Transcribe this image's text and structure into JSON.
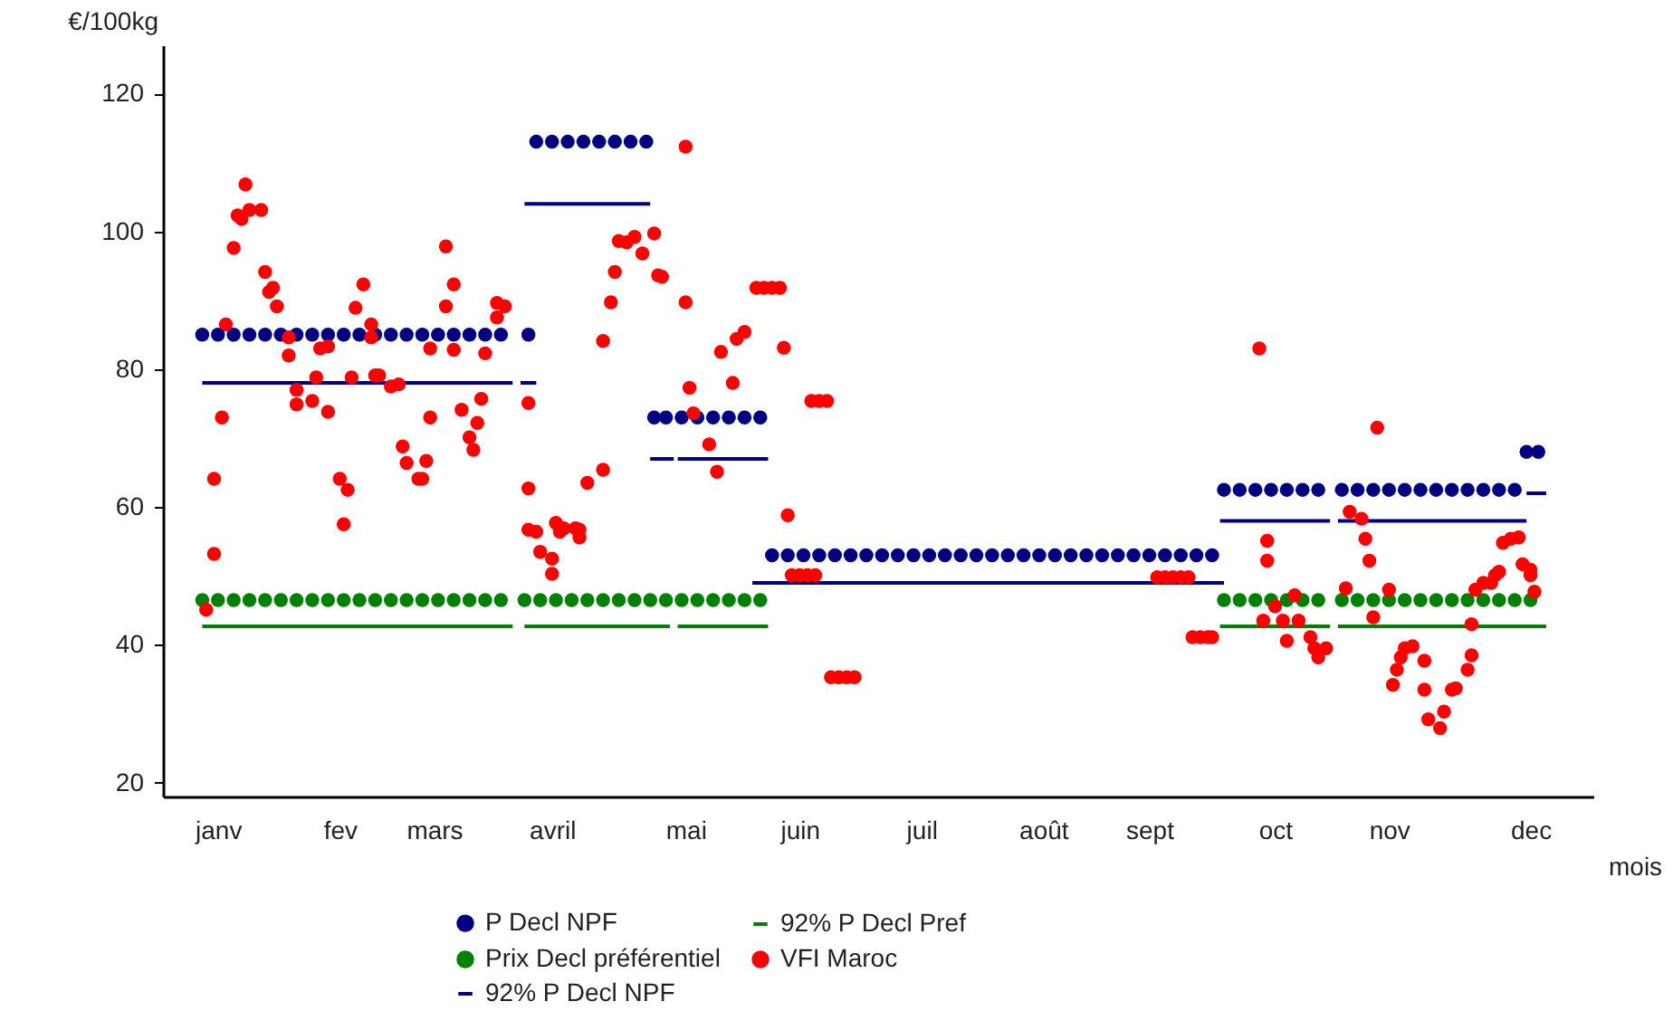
{
  "chart_data": {
    "type": "scatter",
    "xlabel": "mois",
    "ylabel": "€/100kg",
    "xlim": [
      "--01-01",
      "--12-31"
    ],
    "ylim": [
      18,
      127
    ],
    "yticks": [
      20,
      40,
      60,
      80,
      100,
      120
    ],
    "xticks": [
      {
        "value": "--01-15",
        "label": "janv"
      },
      {
        "value": "--02-15",
        "label": "fev"
      },
      {
        "value": "--03-11",
        "label": "mars"
      },
      {
        "value": "--04-10",
        "label": "avril"
      },
      {
        "value": "--05-14",
        "label": "mai"
      },
      {
        "value": "--06-12",
        "label": "juin"
      },
      {
        "value": "--07-13",
        "label": "juil"
      },
      {
        "value": "--08-13",
        "label": "août"
      },
      {
        "value": "--09-09",
        "label": "sept"
      },
      {
        "value": "--10-11",
        "label": "oct"
      },
      {
        "value": "--11-09",
        "label": "nov"
      },
      {
        "value": "--12-15",
        "label": "dec"
      }
    ],
    "grid": false,
    "legend": "bottom",
    "marker": "circle",
    "line_style": "solid",
    "series": [
      {
        "name": "P Decl NPF",
        "color": "#000080",
        "x": [
          "--01-11",
          "--01-15",
          "--01-19",
          "--01-23",
          "--01-27",
          "--01-31",
          "--02-04",
          "--02-08",
          "--02-12",
          "--02-16",
          "--02-20",
          "--02-24",
          "--02-28",
          "--03-04",
          "--03-08",
          "--03-12",
          "--03-16",
          "--03-20",
          "--03-24",
          "--03-28",
          "--04-04",
          "--04-06",
          "--04-10",
          "--04-14",
          "--04-18",
          "--04-22",
          "--04-26",
          "--04-30",
          "--05-04",
          "--05-06",
          "--05-09",
          "--05-13",
          "--05-17",
          "--05-21",
          "--05-25",
          "--05-29",
          "--06-02",
          "--06-05",
          "--06-09",
          "--06-13",
          "--06-17",
          "--06-21",
          "--06-25",
          "--06-29",
          "--07-03",
          "--07-07",
          "--07-11",
          "--07-15",
          "--07-19",
          "--07-23",
          "--07-27",
          "--07-31",
          "--08-04",
          "--08-08",
          "--08-12",
          "--08-16",
          "--08-20",
          "--08-24",
          "--08-28",
          "--09-01",
          "--09-05",
          "--09-09",
          "--09-13",
          "--09-17",
          "--09-21",
          "--09-25",
          "--09-28",
          "--10-02",
          "--10-06",
          "--10-10",
          "--10-14",
          "--10-18",
          "--10-22",
          "--10-28",
          "--11-01",
          "--11-05",
          "--11-09",
          "--11-13",
          "--11-17",
          "--11-21",
          "--11-25",
          "--11-29",
          "--12-03",
          "--12-07",
          "--12-11",
          "--12-14",
          "--12-17"
        ],
        "values": [
          85,
          85,
          85,
          85,
          85,
          85,
          85,
          85,
          85,
          85,
          85,
          85,
          85,
          85,
          85,
          85,
          85,
          85,
          85,
          85,
          85,
          113,
          113,
          113,
          113,
          113,
          113,
          113,
          113,
          73,
          73,
          73,
          73,
          73,
          73,
          73,
          73,
          53,
          53,
          53,
          53,
          53,
          53,
          53,
          53,
          53,
          53,
          53,
          53,
          53,
          53,
          53,
          53,
          53,
          53,
          53,
          53,
          53,
          53,
          53,
          53,
          53,
          53,
          53,
          53,
          53,
          62.5,
          62.5,
          62.5,
          62.5,
          62.5,
          62.5,
          62.5,
          62.5,
          62.5,
          62.5,
          62.5,
          62.5,
          62.5,
          62.5,
          62.5,
          62.5,
          62.5,
          62.5,
          62.5,
          68,
          68
        ]
      },
      {
        "name": "Prix Decl préférentiel",
        "color": "#008000",
        "x": [
          "--01-11",
          "--01-15",
          "--01-19",
          "--01-23",
          "--01-27",
          "--01-31",
          "--02-04",
          "--02-08",
          "--02-12",
          "--02-16",
          "--02-20",
          "--02-24",
          "--02-28",
          "--03-04",
          "--03-08",
          "--03-12",
          "--03-16",
          "--03-20",
          "--03-24",
          "--03-28",
          "--04-03",
          "--04-07",
          "--04-11",
          "--04-15",
          "--04-19",
          "--04-23",
          "--04-27",
          "--05-01",
          "--05-05",
          "--05-09",
          "--05-13",
          "--05-17",
          "--05-21",
          "--05-25",
          "--05-29",
          "--06-02",
          "--09-28",
          "--10-02",
          "--10-06",
          "--10-10",
          "--10-14",
          "--10-18",
          "--10-22",
          "--10-28",
          "--11-01",
          "--11-05",
          "--11-09",
          "--11-13",
          "--11-17",
          "--11-21",
          "--11-25",
          "--11-29",
          "--12-03",
          "--12-07",
          "--12-11",
          "--12-15"
        ],
        "values": [
          46.5,
          46.5,
          46.5,
          46.5,
          46.5,
          46.5,
          46.5,
          46.5,
          46.5,
          46.5,
          46.5,
          46.5,
          46.5,
          46.5,
          46.5,
          46.5,
          46.5,
          46.5,
          46.5,
          46.5,
          46.5,
          46.5,
          46.5,
          46.5,
          46.5,
          46.5,
          46.5,
          46.5,
          46.5,
          46.5,
          46.5,
          46.5,
          46.5,
          46.5,
          46.5,
          46.5,
          46.5,
          46.5,
          46.5,
          46.5,
          46.5,
          46.5,
          46.5,
          46.5,
          46.5,
          46.5,
          46.5,
          46.5,
          46.5,
          46.5,
          46.5,
          46.5,
          46.5,
          46.5,
          46.5,
          46.5
        ]
      },
      {
        "name": "92% P Decl NPF",
        "type": "line",
        "marker": "none",
        "color": "#000080",
        "x": [
          "--01-11",
          "--03-31",
          null,
          "--04-02",
          "--04-06",
          null,
          "--04-03",
          "--05-05",
          null,
          "--05-05",
          "--05-11",
          null,
          "--05-12",
          "--06-04",
          null,
          "--05-31",
          "--09-28",
          null,
          "--09-27",
          "--10-25",
          null,
          "--10-27",
          "--12-14",
          null,
          "--12-14",
          "--12-19"
        ],
        "values": [
          78,
          78,
          null,
          78,
          78,
          null,
          104,
          104,
          null,
          67,
          67,
          null,
          67,
          67,
          null,
          49,
          49,
          null,
          58,
          58,
          null,
          58,
          58,
          null,
          62,
          62
        ]
      },
      {
        "name": "92% P Decl Pref",
        "type": "line",
        "marker": "none",
        "color": "#008000",
        "x": [
          "--01-11",
          "--03-31",
          null,
          "--04-03",
          "--05-10",
          null,
          "--05-12",
          "--06-04",
          null,
          "--09-27",
          "--10-25",
          null,
          "--10-27",
          "--12-19"
        ],
        "values": [
          42.7,
          42.7,
          null,
          42.7,
          42.7,
          null,
          42.7,
          42.7,
          null,
          42.7,
          42.7,
          null,
          42.7,
          42.7
        ]
      },
      {
        "name": "VFI Maroc",
        "color": "#ff0000",
        "x": [
          "--01-12",
          "--01-14",
          "--01-14",
          "--01-16",
          "--01-17",
          "--01-19",
          "--01-20",
          "--01-21",
          "--01-22",
          "--01-23",
          "--01-26",
          "--01-27",
          "--01-28",
          "--01-29",
          "--01-30",
          "--02-02",
          "--02-02",
          "--02-04",
          "--02-04",
          "--02-08",
          "--02-09",
          "--02-10",
          "--02-12",
          "--02-12",
          "--02-15",
          "--02-17",
          "--02-16",
          "--02-18",
          "--02-19",
          "--02-21",
          "--02-23",
          "--02-23",
          "--02-24",
          "--02-25",
          "--02-28",
          "--03-02",
          "--03-03",
          "--03-04",
          "--03-07",
          "--03-08",
          "--03-09",
          "--03-10",
          "--03-10",
          "--03-14",
          "--03-14",
          "--03-16",
          "--03-16",
          "--03-18",
          "--03-20",
          "--03-21",
          "--03-22",
          "--03-23",
          "--03-24",
          "--03-27",
          "--03-27",
          "--03-29",
          "--04-04",
          "--04-04",
          "--04-04",
          "--04-06",
          "--04-07",
          "--04-10",
          "--04-10",
          "--04-11",
          "--04-12",
          "--04-13",
          "--04-16",
          "--04-17",
          "--04-17",
          "--04-19",
          "--04-23",
          "--04-23",
          "--04-25",
          "--04-26",
          "--04-27",
          "--04-29",
          "--05-01",
          "--05-03",
          "--05-06",
          "--05-07",
          "--05-08",
          "--05-14",
          "--05-14",
          "--05-15",
          "--05-16",
          "--05-20",
          "--05-22",
          "--05-23",
          "--05-26",
          "--05-27",
          "--05-29",
          "--06-01",
          "--06-03",
          "--06-05",
          "--06-07",
          "--06-08",
          "--06-09",
          "--06-10",
          "--06-12",
          "--06-14",
          "--06-16",
          "--06-15",
          "--06-17",
          "--06-19",
          "--06-20",
          "--06-22",
          "--06-24",
          "--06-26",
          "--09-11",
          "--09-13",
          "--09-15",
          "--09-17",
          "--09-19",
          "--09-20",
          "--09-22",
          "--09-24",
          "--09-25",
          "--10-07",
          "--10-09",
          "--10-09",
          "--10-11",
          "--10-08",
          "--10-13",
          "--10-14",
          "--10-16",
          "--10-17",
          "--10-20",
          "--10-21",
          "--10-22",
          "--10-24",
          "--10-29",
          "--10-30",
          "--11-02",
          "--11-03",
          "--11-04",
          "--11-05",
          "--11-06",
          "--11-09",
          "--11-10",
          "--11-11",
          "--11-12",
          "--11-13",
          "--11-15",
          "--11-18",
          "--11-18",
          "--11-19",
          "--11-22",
          "--11-23",
          "--11-25",
          "--11-26",
          "--11-29",
          "--11-30",
          "--11-30",
          "--12-01",
          "--12-03",
          "--12-05",
          "--12-06",
          "--12-07",
          "--12-08",
          "--12-10",
          "--12-12",
          "--12-13",
          "--12-15",
          "--12-15",
          "--12-16"
        ],
        "values": [
          45.1,
          53.2,
          64.1,
          73,
          86.5,
          97.6,
          102.3,
          101.8,
          106.8,
          103.1,
          103.1,
          94.1,
          91.2,
          91.8,
          89.1,
          84.6,
          82,
          77,
          74.9,
          75.4,
          78.8,
          83,
          83.3,
          73.8,
          64.1,
          62.5,
          57.5,
          78.8,
          88.9,
          92.3,
          86.5,
          84.6,
          79.1,
          79.1,
          77.5,
          77.8,
          68.8,
          66.4,
          64.1,
          64.1,
          66.7,
          73,
          83,
          89.1,
          97.8,
          92.3,
          82.8,
          74.1,
          70.1,
          68.3,
          72.2,
          75.7,
          82.3,
          87.5,
          89.6,
          89.1,
          75.1,
          62.7,
          56.7,
          56.4,
          53.5,
          50.3,
          52.5,
          57.7,
          56.4,
          56.9,
          56.9,
          55.6,
          56.7,
          63.5,
          65.4,
          84.1,
          89.7,
          94.1,
          98.6,
          98.4,
          99.2,
          96.8,
          99.7,
          93.6,
          93.4,
          112.3,
          89.7,
          77.3,
          73.6,
          69.1,
          65.1,
          82.5,
          78,
          84.4,
          85.4,
          91.8,
          91.8,
          91.8,
          91.8,
          83.1,
          58.8,
          50.1,
          50.1,
          50.1,
          50.1,
          75.4,
          75.4,
          75.4,
          35.3,
          35.3,
          35.3,
          35.3,
          49.8,
          49.8,
          49.8,
          49.8,
          49.8,
          41.1,
          41.1,
          41.1,
          41.1,
          83,
          55.1,
          52.2,
          45.6,
          43.5,
          43.5,
          40.6,
          47.2,
          43.5,
          41.1,
          39.5,
          38.2,
          39.5,
          48.2,
          59.3,
          58.3,
          55.4,
          52.2,
          44,
          71.5,
          48,
          34.2,
          36.4,
          38.2,
          39.5,
          39.8,
          37.7,
          33.5,
          29.2,
          27.9,
          30.3,
          33.5,
          33.7,
          36.4,
          38.5,
          43,
          48,
          49,
          49,
          50.1,
          50.6,
          54.8,
          55.4,
          55.6,
          51.7,
          50.9,
          50.1,
          47.7
        ]
      }
    ]
  }
}
